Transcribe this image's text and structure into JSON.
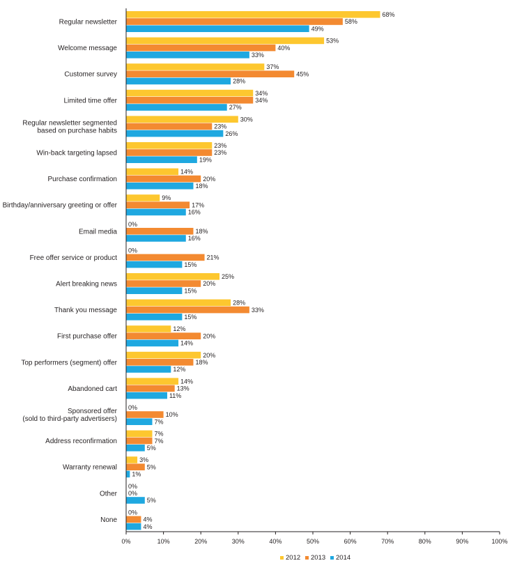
{
  "chart_data": {
    "type": "bar",
    "orientation": "horizontal",
    "categories": [
      "Regular newsletter",
      "Welcome message",
      "Customer survey",
      "Limited time offer",
      "Regular newsletter segmented\nbased on purchase habits",
      "Win-back targeting lapsed",
      "Purchase confirmation",
      "Birthday/anniversary greeting or offer",
      "Email media",
      "Free offer service or product",
      "Alert breaking news",
      "Thank you message",
      "First purchase offer",
      "Top performers (segment) offer",
      "Abandoned cart",
      "Sponsored offer\n(sold to third-party advertisers)",
      "Address reconfirmation",
      "Warranty renewal",
      "Other",
      "None"
    ],
    "series": [
      {
        "name": "2012",
        "color": "#fdc72f",
        "values": [
          68,
          53,
          37,
          34,
          30,
          23,
          14,
          9,
          0,
          0,
          25,
          28,
          12,
          20,
          14,
          0,
          7,
          3,
          0,
          0
        ]
      },
      {
        "name": "2013",
        "color": "#f38a31",
        "values": [
          58,
          40,
          45,
          34,
          23,
          23,
          20,
          17,
          18,
          21,
          20,
          33,
          20,
          18,
          13,
          10,
          7,
          5,
          0,
          4
        ]
      },
      {
        "name": "2014",
        "color": "#1fa8e0",
        "values": [
          49,
          33,
          28,
          27,
          26,
          19,
          18,
          16,
          16,
          15,
          15,
          15,
          14,
          12,
          11,
          7,
          5,
          1,
          5,
          4
        ]
      }
    ],
    "value_suffix": "%",
    "xlim": [
      0,
      100
    ],
    "xticks": [
      "0%",
      "10%",
      "20%",
      "30%",
      "40%",
      "50%",
      "60%",
      "70%",
      "80%",
      "90%",
      "100%"
    ],
    "grid": false,
    "legend_position": "bottom-center",
    "title": "",
    "xlabel": "",
    "ylabel": ""
  }
}
